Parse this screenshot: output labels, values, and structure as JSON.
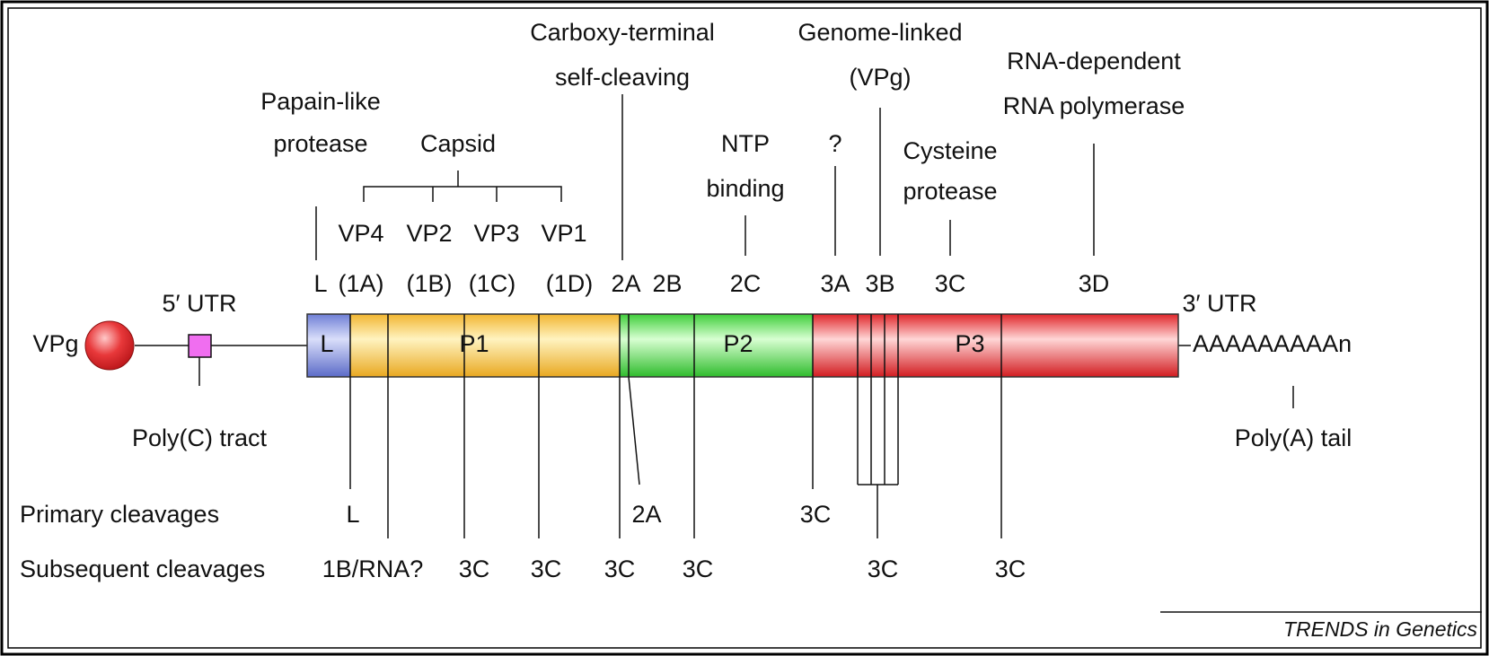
{
  "function_labels": [
    [
      "Papain-like",
      "protease"
    ],
    [
      "Capsid"
    ],
    [
      "Carboxy-terminal",
      "self-cleaving"
    ],
    [
      "NTP",
      "binding"
    ],
    [
      "?"
    ],
    [
      "Genome-linked",
      "(VPg)"
    ],
    [
      "Cysteine",
      "protease"
    ],
    [
      "RNA-dependent",
      "RNA polymerase"
    ]
  ],
  "capsid_proteins": [
    "VP4",
    "VP2",
    "VP3",
    "VP1"
  ],
  "proteins": [
    "L",
    "(1A)",
    "(1B)",
    "(1C)",
    "(1D)",
    "2A",
    "2B",
    "2C",
    "3A",
    "3B",
    "3C",
    "3D"
  ],
  "genome": {
    "vpg": "VPg",
    "utr5": "5′ UTR",
    "utr3": "3′ UTR",
    "poly_c": "Poly(C) tract",
    "poly_a_seq": "AAAAAAAAAn",
    "poly_a": "Poly(A) tail"
  },
  "regions": [
    "L",
    "P1",
    "P2",
    "P3"
  ],
  "primary_cleavages": {
    "label": "Primary cleavages",
    "sites": [
      "L",
      "2A",
      "3C"
    ]
  },
  "subsequent_cleavages": {
    "label": "Subsequent cleavages",
    "sites": [
      "1B/RNA?",
      "3C",
      "3C",
      "3C",
      "3C",
      "3C",
      "3C"
    ]
  },
  "credit": "TRENDS in Genetics"
}
